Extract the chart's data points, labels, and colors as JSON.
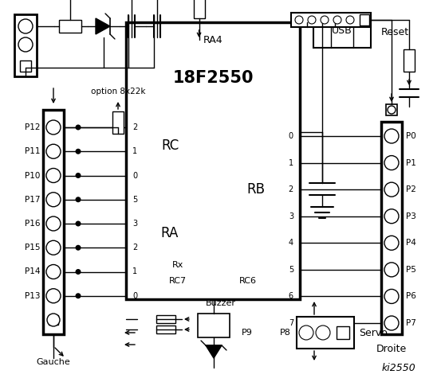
{
  "bg_color": "#ffffff",
  "chip_label": "18F2550",
  "ra4_label": "RA4",
  "rc_label": "RC",
  "ra_label": "RA",
  "rb_label": "RB",
  "rx_label": "Rx",
  "rc7_label": "RC7",
  "rc6_label": "RC6",
  "rc_pins": [
    "2",
    "1",
    "0",
    "5",
    "3",
    "2",
    "1",
    "0"
  ],
  "rb_pins": [
    "0",
    "1",
    "2",
    "3",
    "4",
    "5",
    "6",
    "7"
  ],
  "left_labels": [
    "P12",
    "P11",
    "P10",
    "P17",
    "P16",
    "P15",
    "P14",
    "P13"
  ],
  "right_labels": [
    "P0",
    "P1",
    "P2",
    "P3",
    "P4",
    "P5",
    "P6",
    "P7"
  ],
  "gauche_label": "Gauche",
  "droite_label": "Droite",
  "option_label": "option 8x22k",
  "reset_label": "Reset",
  "usb_label": "USB",
  "buzzer_label": "Buzzer",
  "servo_label": "Servo",
  "p9_label": "P9",
  "p8_label": "P8",
  "title": "ki2550"
}
